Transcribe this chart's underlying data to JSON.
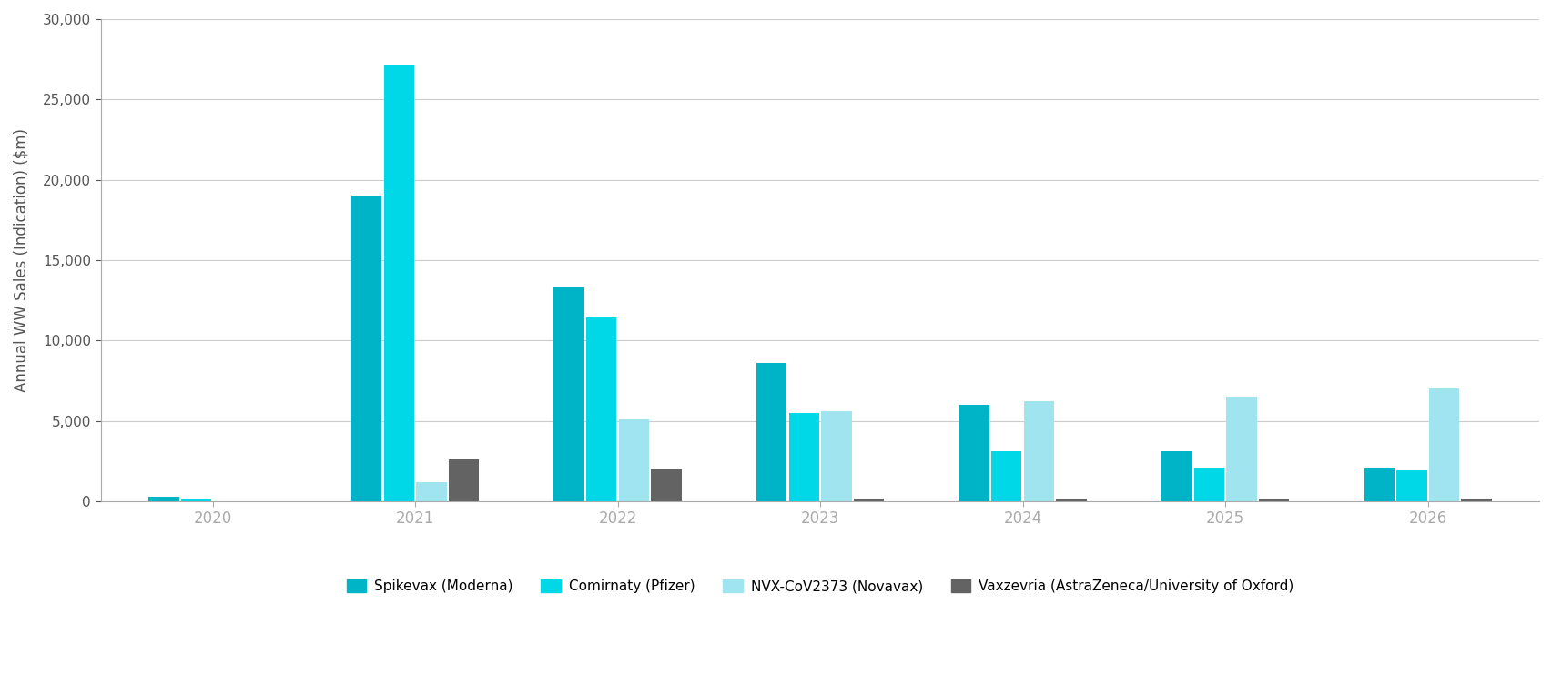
{
  "years": [
    2020,
    2021,
    2022,
    2023,
    2024,
    2025,
    2026
  ],
  "spikevax": [
    300,
    19000,
    13300,
    8600,
    6000,
    3100,
    2000
  ],
  "comirnaty": [
    100,
    27100,
    11400,
    5500,
    3100,
    2100,
    1900
  ],
  "nvx": [
    0,
    1200,
    5100,
    5600,
    6200,
    6500,
    7000
  ],
  "vaxzevria": [
    0,
    2600,
    1950,
    150,
    150,
    150,
    150
  ],
  "colors": {
    "spikevax": "#00b4c8",
    "comirnaty": "#00d8e8",
    "nvx": "#a0e4f0",
    "vaxzevria": "#636363"
  },
  "legend_labels": [
    "Spikevax (Moderna)",
    "Comirnaty (Pfizer)",
    "NVX-CoV2373 (Novavax)",
    "Vaxzevria (AstraZeneca/University of Oxford)"
  ],
  "ylabel": "Annual WW Sales (Indication) ($m)",
  "ylim": [
    0,
    30000
  ],
  "yticks": [
    0,
    5000,
    10000,
    15000,
    20000,
    25000,
    30000
  ],
  "background_color": "#ffffff",
  "grid_color": "#cccccc",
  "spine_color": "#aaaaaa",
  "tick_color": "#888888",
  "label_color": "#555555"
}
